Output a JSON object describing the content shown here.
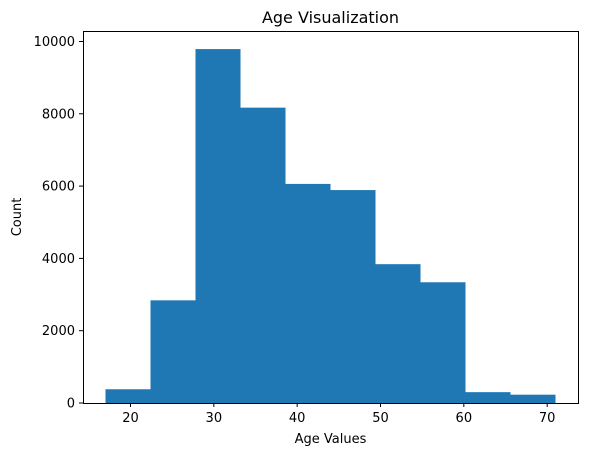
{
  "chart_data": {
    "type": "bar",
    "title": "Age Visualization",
    "xlabel": "Age Values",
    "ylabel": "Count",
    "color": "#1f77b4",
    "xlim": [
      14.3,
      73.7
    ],
    "ylim": [
      0,
      10290
    ],
    "bins": [
      {
        "x0": 17.0,
        "x1": 22.4,
        "value": 380
      },
      {
        "x0": 22.4,
        "x1": 27.8,
        "value": 2840
      },
      {
        "x0": 27.8,
        "x1": 33.2,
        "value": 9790
      },
      {
        "x0": 33.2,
        "x1": 38.6,
        "value": 8170
      },
      {
        "x0": 38.6,
        "x1": 44.0,
        "value": 6060
      },
      {
        "x0": 44.0,
        "x1": 49.4,
        "value": 5890
      },
      {
        "x0": 49.4,
        "x1": 54.8,
        "value": 3840
      },
      {
        "x0": 54.8,
        "x1": 60.2,
        "value": 3340
      },
      {
        "x0": 60.2,
        "x1": 65.6,
        "value": 300
      },
      {
        "x0": 65.6,
        "x1": 71.0,
        "value": 230
      }
    ],
    "xticks": [
      20,
      30,
      40,
      50,
      60,
      70
    ],
    "yticks": [
      0,
      2000,
      4000,
      6000,
      8000,
      10000
    ],
    "grid": false,
    "legend": false
  }
}
